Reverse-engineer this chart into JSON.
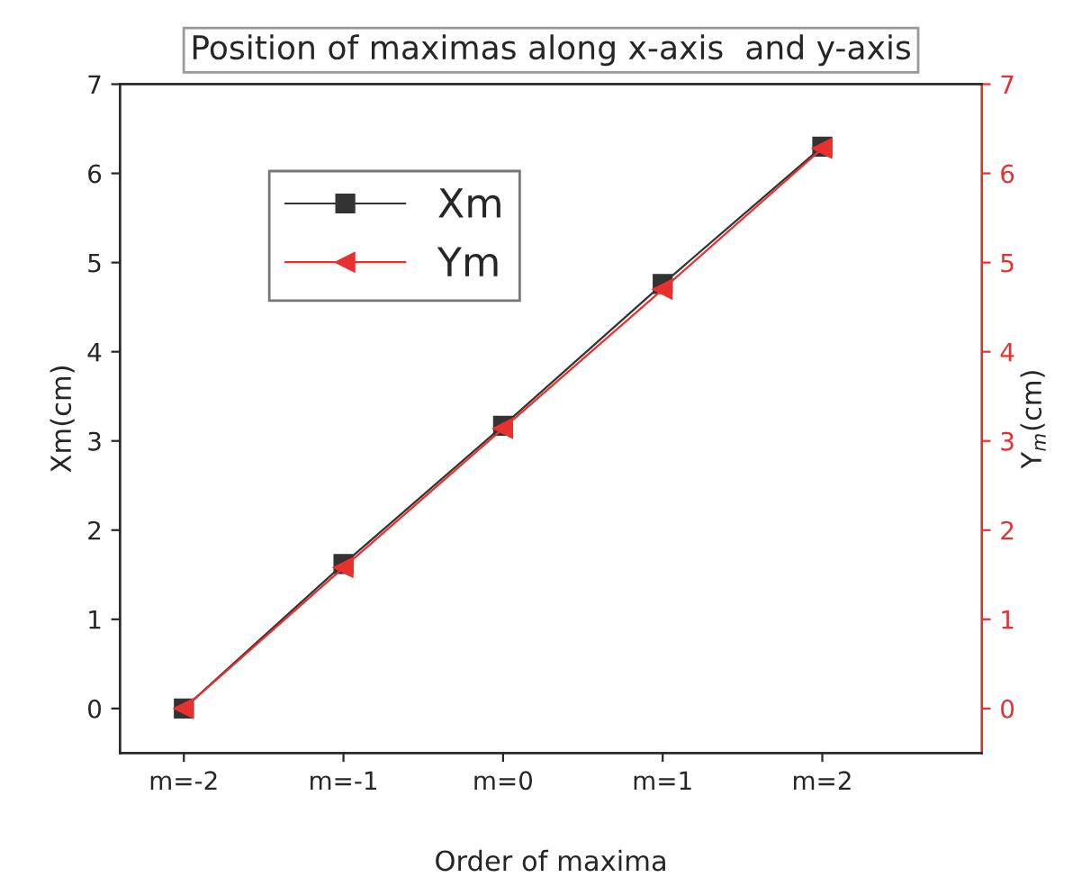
{
  "chart_data": {
    "type": "line",
    "title": "Position of maximas along x-axis  and y-axis",
    "xlabel": "Order of maxima",
    "ylabel": "Xm(cm)",
    "y2label": "Y$_{m}$(cm)",
    "categories": [
      "m=-2",
      "m=-1",
      "m=0",
      "m=1",
      "m=2"
    ],
    "series": [
      {
        "name": "Xm",
        "color": "#333333",
        "values": [
          0,
          1.62,
          3.17,
          4.76,
          6.3
        ],
        "marker": "square"
      },
      {
        "name": "Ym",
        "color": "#e8312f",
        "values": [
          0,
          1.58,
          3.14,
          4.7,
          6.28
        ],
        "marker": "triangle",
        "axis": "y2"
      }
    ],
    "ylim": [
      -0.5,
      7
    ],
    "yticks": [
      0,
      1,
      2,
      3,
      4,
      5,
      6,
      7
    ],
    "y2lim": [
      -0.5,
      7
    ],
    "y2ticks": [
      0,
      1,
      2,
      3,
      4,
      5,
      6,
      7
    ],
    "legend": "top left",
    "grid": false,
    "line_style": "solid"
  }
}
